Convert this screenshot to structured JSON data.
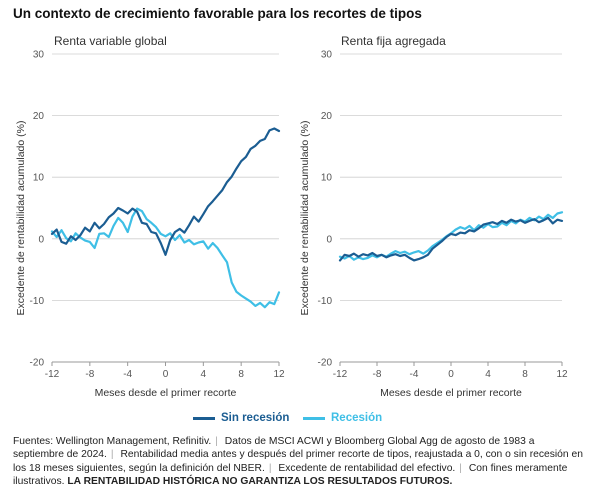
{
  "title": "Un contexto de crecimiento favorable para los recortes de tipos",
  "colors": {
    "sin_recesion": "#1b5d92",
    "recesion": "#3fbfe6",
    "grid": "#cfcfcf",
    "axis_text": "#555555"
  },
  "legend": {
    "sin_recesion": "Sin recesión",
    "recesion": "Recesión"
  },
  "footnote": {
    "parts": [
      "Fuentes: Wellington Management, Refinitiv.",
      "Datos de MSCI ACWI y Bloomberg Global Agg de agosto de 1983 a septiembre de 2024.",
      "Rentabilidad media antes y después del primer recorte de tipos, reajustada a 0, con o sin recesión en los 18 meses siguientes, según la definición del NBER.",
      "Excedente de rentabilidad del efectivo.",
      "Con fines meramente ilustrativos."
    ],
    "bold": "LA RENTABILIDAD HISTÓRICA NO GARANTIZA LOS RESULTADOS FUTUROS."
  },
  "chart_data": [
    {
      "type": "line",
      "title": "Renta variable global",
      "xlabel": "Meses desde el primer recorte",
      "ylabel": "Excedente de rentabilidad acumulado (%)",
      "xlim": [
        -12,
        12
      ],
      "ylim": [
        -20,
        30
      ],
      "xticks": [
        -12,
        -8,
        -4,
        0,
        4,
        8,
        12
      ],
      "yticks": [
        -20,
        -10,
        0,
        10,
        20,
        30
      ],
      "grid": true,
      "series": [
        {
          "name": "Sin recesión",
          "x": [
            -12,
            -11.5,
            -11,
            -10.5,
            -10,
            -9.5,
            -9,
            -8.5,
            -8,
            -7.5,
            -7,
            -6.5,
            -6,
            -5.5,
            -5,
            -4.5,
            -4,
            -3.5,
            -3,
            -2.5,
            -2,
            -1.5,
            -1,
            -0.5,
            0,
            0.5,
            1,
            1.5,
            2,
            2.5,
            3,
            3.5,
            4,
            4.5,
            5,
            5.5,
            6,
            6.5,
            7,
            7.5,
            8,
            8.5,
            9,
            9.5,
            10,
            10.5,
            11,
            11.5,
            12
          ],
          "values": [
            0.8,
            1.5,
            -0.5,
            -0.8,
            0.4,
            -0.2,
            0.6,
            1.8,
            1.2,
            2.6,
            1.7,
            2.4,
            3.5,
            4.1,
            5.0,
            4.6,
            4.1,
            4.9,
            4.4,
            2.6,
            2.4,
            1.1,
            0.9,
            -0.7,
            -2.6,
            -0.2,
            1.1,
            1.6,
            1.0,
            2.2,
            3.6,
            2.8,
            4.0,
            5.3,
            6.1,
            7.0,
            7.9,
            9.2,
            10.1,
            11.4,
            12.6,
            13.3,
            14.6,
            15.1,
            15.9,
            16.2,
            17.6,
            17.9,
            17.5
          ]
        },
        {
          "name": "Recesión",
          "x": [
            -12,
            -11.5,
            -11,
            -10.5,
            -10,
            -9.5,
            -9,
            -8.5,
            -8,
            -7.5,
            -7,
            -6.5,
            -6,
            -5.5,
            -5,
            -4.5,
            -4,
            -3.5,
            -3,
            -2.5,
            -2,
            -1.5,
            -1,
            -0.5,
            0,
            0.5,
            1,
            1.5,
            2,
            2.5,
            3,
            3.5,
            4,
            4.5,
            5,
            5.5,
            6,
            6.5,
            7,
            7.5,
            8,
            8.5,
            9,
            9.5,
            10,
            10.5,
            11,
            11.5,
            12
          ],
          "values": [
            1.2,
            0.3,
            1.4,
            0.1,
            -0.4,
            0.9,
            0.2,
            -0.3,
            -0.5,
            -1.5,
            0.8,
            0.9,
            0.3,
            2.1,
            3.4,
            2.6,
            1.1,
            3.6,
            4.9,
            4.5,
            3.2,
            2.6,
            1.9,
            0.8,
            0.4,
            0.9,
            -0.2,
            0.6,
            -0.6,
            -0.2,
            -0.9,
            -0.6,
            -0.4,
            -1.6,
            -0.7,
            -1.5,
            -2.7,
            -3.8,
            -7.1,
            -8.6,
            -9.2,
            -9.7,
            -10.2,
            -10.9,
            -10.4,
            -11.1,
            -10.3,
            -10.6,
            -8.7
          ]
        }
      ]
    },
    {
      "type": "line",
      "title": "Renta fija agregada",
      "xlabel": "Meses desde el primer recorte",
      "ylabel": "Excedente de rentabilidad acumulado (%)",
      "xlim": [
        -12,
        12
      ],
      "ylim": [
        -20,
        30
      ],
      "xticks": [
        -12,
        -8,
        -4,
        0,
        4,
        8,
        12
      ],
      "yticks": [
        -20,
        -10,
        0,
        10,
        20,
        30
      ],
      "grid": true,
      "series": [
        {
          "name": "Sin recesión",
          "x": [
            -12,
            -11.5,
            -11,
            -10.5,
            -10,
            -9.5,
            -9,
            -8.5,
            -8,
            -7.5,
            -7,
            -6.5,
            -6,
            -5.5,
            -5,
            -4.5,
            -4,
            -3.5,
            -3,
            -2.5,
            -2,
            -1.5,
            -1,
            -0.5,
            0,
            0.5,
            1,
            1.5,
            2,
            2.5,
            3,
            3.5,
            4,
            4.5,
            5,
            5.5,
            6,
            6.5,
            7,
            7.5,
            8,
            8.5,
            9,
            9.5,
            10,
            10.5,
            11,
            11.5,
            12
          ],
          "values": [
            -3.5,
            -2.6,
            -2.8,
            -2.4,
            -2.9,
            -2.5,
            -2.7,
            -2.3,
            -2.8,
            -2.6,
            -3.0,
            -2.7,
            -2.5,
            -2.8,
            -2.6,
            -3.1,
            -3.5,
            -3.3,
            -3.0,
            -2.6,
            -1.6,
            -1.0,
            -0.4,
            0.3,
            0.8,
            0.6,
            1.0,
            0.9,
            1.4,
            1.2,
            1.7,
            2.3,
            2.5,
            2.7,
            2.4,
            2.9,
            2.6,
            3.1,
            2.8,
            3.0,
            2.6,
            2.9,
            3.2,
            2.7,
            3.0,
            3.4,
            2.5,
            3.1,
            2.9
          ]
        },
        {
          "name": "Recesión",
          "x": [
            -12,
            -11.5,
            -11,
            -10.5,
            -10,
            -9.5,
            -9,
            -8.5,
            -8,
            -7.5,
            -7,
            -6.5,
            -6,
            -5.5,
            -5,
            -4.5,
            -4,
            -3.5,
            -3,
            -2.5,
            -2,
            -1.5,
            -1,
            -0.5,
            0,
            0.5,
            1,
            1.5,
            2,
            2.5,
            3,
            3.5,
            4,
            4.5,
            5,
            5.5,
            6,
            6.5,
            7,
            7.5,
            8,
            8.5,
            9,
            9.5,
            10,
            10.5,
            11,
            11.5,
            12
          ],
          "values": [
            -2.9,
            -3.2,
            -2.8,
            -3.4,
            -3.0,
            -3.3,
            -3.1,
            -2.7,
            -3.0,
            -2.6,
            -2.9,
            -2.4,
            -2.0,
            -2.3,
            -2.1,
            -2.5,
            -2.2,
            -2.0,
            -2.4,
            -1.9,
            -1.2,
            -0.7,
            -0.2,
            0.4,
            0.9,
            1.5,
            1.9,
            1.6,
            2.1,
            1.4,
            2.2,
            1.8,
            2.4,
            1.9,
            2.0,
            2.6,
            2.2,
            2.9,
            2.5,
            3.1,
            2.8,
            3.4,
            3.0,
            3.6,
            3.2,
            3.9,
            3.4,
            4.1,
            4.3
          ]
        }
      ]
    }
  ]
}
